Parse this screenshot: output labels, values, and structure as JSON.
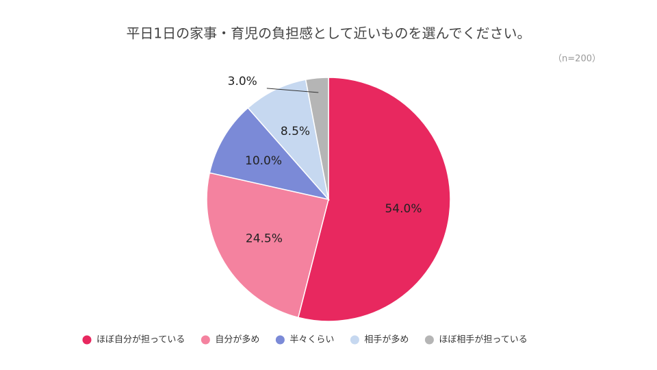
{
  "chart_data": {
    "type": "pie",
    "title": "平日1日の家事・育児の負担感として近いものを選んでください。",
    "subtitle": "（n=200）",
    "categories": [
      "ほぼ自分が担っている",
      "自分が多め",
      "半々くらい",
      "相手が多め",
      "ほぼ相手が担っている"
    ],
    "values": [
      54.0,
      24.5,
      10.0,
      8.5,
      3.0
    ],
    "value_labels": [
      "54.0%",
      "24.5%",
      "10.0%",
      "8.5%",
      "3.0%"
    ],
    "colors": [
      "#e8285f",
      "#f4829f",
      "#7b8ad7",
      "#c6d8f0",
      "#b5b5b5"
    ],
    "legend": "bottom"
  }
}
